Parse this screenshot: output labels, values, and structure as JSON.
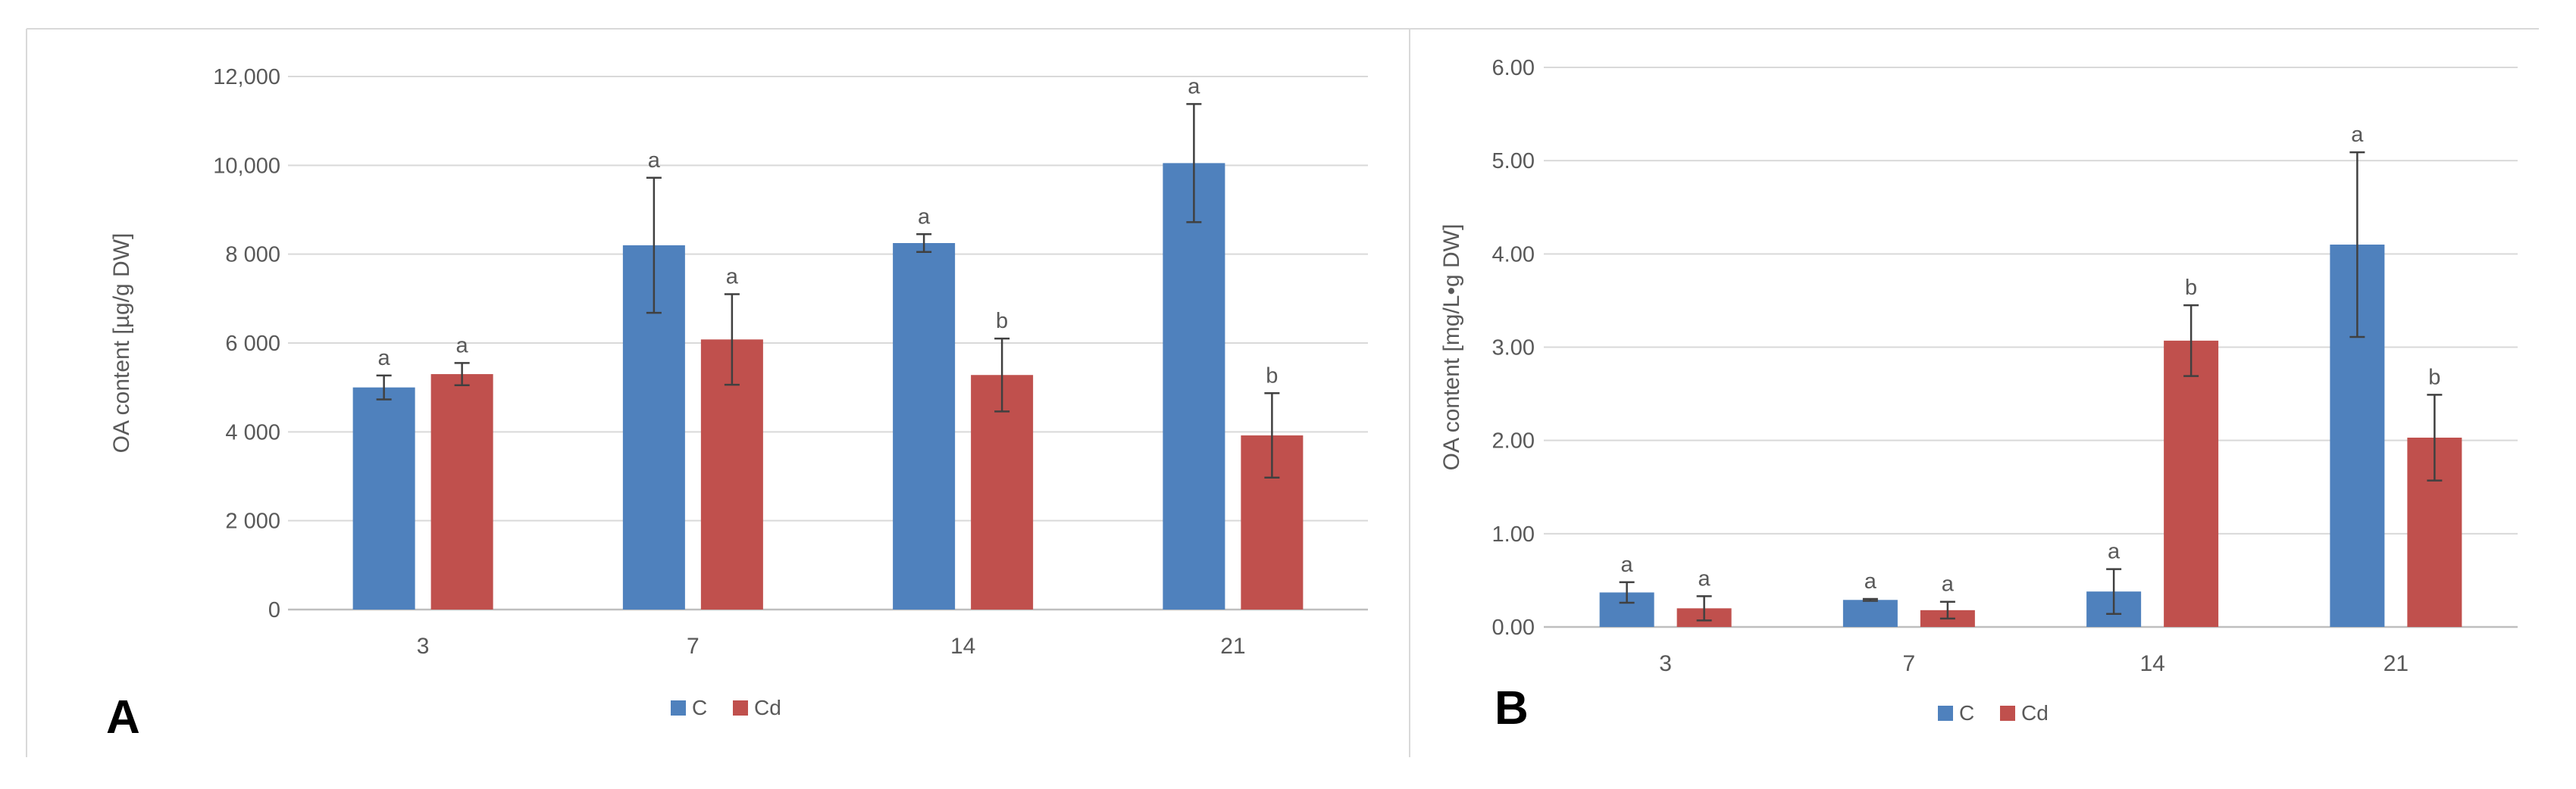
{
  "colors": {
    "C": "#4F81BD",
    "Cd": "#C0504D",
    "grid": "#D9D9D9",
    "axis": "#BFBFBF",
    "text": "#595959",
    "errorbar": "#404040",
    "frame": "#D9D9D9"
  },
  "chart_data": [
    {
      "panel": "A",
      "type": "bar",
      "title": "",
      "xlabel": "",
      "ylabel": "OA content [µg/g DW]",
      "categories": [
        "3",
        "7",
        "14",
        "21"
      ],
      "ylim": [
        0,
        12000
      ],
      "yticks": [
        0,
        2000,
        4000,
        6000,
        8000,
        10000,
        12000
      ],
      "ytick_labels": [
        "0",
        "2 000",
        "4 000",
        "6 000",
        "8 000",
        "10,000",
        "12,000"
      ],
      "legend_position": "bottom-center",
      "grid": true,
      "series": [
        {
          "name": "C",
          "values": [
            5000,
            8200,
            8250,
            10050
          ],
          "errors": [
            270,
            1520,
            200,
            1330
          ],
          "letters": [
            "a",
            "a",
            "a",
            "a"
          ]
        },
        {
          "name": "Cd",
          "values": [
            5300,
            6080,
            5280,
            3920
          ],
          "errors": [
            250,
            1020,
            820,
            950
          ],
          "letters": [
            "a",
            "a",
            "b",
            "b"
          ]
        }
      ]
    },
    {
      "panel": "B",
      "type": "bar",
      "title": "",
      "xlabel": "",
      "ylabel": "OA content [mg/L•g DW]",
      "categories": [
        "3",
        "7",
        "14",
        "21"
      ],
      "ylim": [
        0,
        6
      ],
      "yticks": [
        0,
        1,
        2,
        3,
        4,
        5,
        6
      ],
      "ytick_labels": [
        "0.00",
        "1.00",
        "2.00",
        "3.00",
        "4.00",
        "5.00",
        "6.00"
      ],
      "legend_position": "bottom-center",
      "grid": true,
      "series": [
        {
          "name": "C",
          "values": [
            0.37,
            0.29,
            0.38,
            4.1
          ],
          "errors": [
            0.11,
            0.01,
            0.24,
            0.99
          ],
          "letters": [
            "a",
            "a",
            "a",
            "a"
          ]
        },
        {
          "name": "Cd",
          "values": [
            0.2,
            0.18,
            3.07,
            2.03
          ],
          "errors": [
            0.13,
            0.09,
            0.38,
            0.46
          ],
          "letters": [
            "a",
            "a",
            "b",
            "b"
          ]
        }
      ]
    }
  ]
}
